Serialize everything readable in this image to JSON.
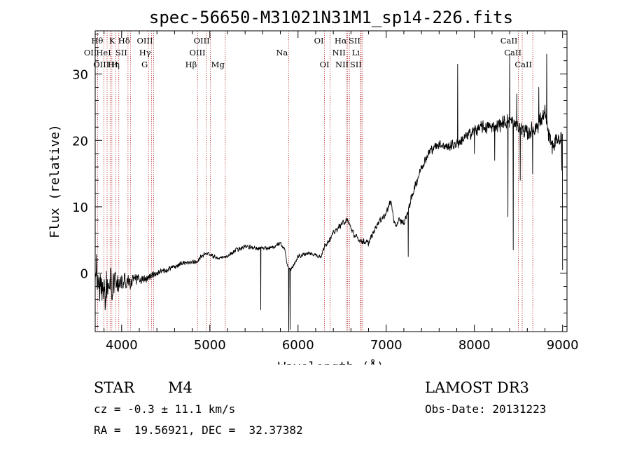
{
  "chart_data": {
    "type": "line",
    "title": "spec-56650-M31021N31M1_sp14-226.fits",
    "xlabel": "Wavelength (Å)",
    "ylabel": "Flux (relative)",
    "xlim": [
      3700,
      9050
    ],
    "ylim": [
      -8.8,
      36.5
    ],
    "xticks": [
      4000,
      5000,
      6000,
      7000,
      8000,
      9000
    ],
    "yticks": [
      0,
      10,
      20,
      30
    ],
    "spectrum_anchors": [
      [
        3700,
        0
      ],
      [
        3760,
        -1
      ],
      [
        3800,
        -3
      ],
      [
        3850,
        -2
      ],
      [
        3900,
        -1.5
      ],
      [
        3950,
        -1
      ],
      [
        4000,
        -1.2
      ],
      [
        4050,
        -1.5
      ],
      [
        4100,
        -1.2
      ],
      [
        4200,
        -0.8
      ],
      [
        4300,
        -0.7
      ],
      [
        4400,
        0.1
      ],
      [
        4500,
        0.5
      ],
      [
        4600,
        1.0
      ],
      [
        4700,
        1.5
      ],
      [
        4800,
        1.6
      ],
      [
        4860,
        1.8
      ],
      [
        4900,
        2.5
      ],
      [
        4950,
        3.0
      ],
      [
        5000,
        2.8
      ],
      [
        5100,
        2.2
      ],
      [
        5200,
        2.5
      ],
      [
        5300,
        3.5
      ],
      [
        5400,
        4.0
      ],
      [
        5500,
        3.8
      ],
      [
        5550,
        3.8
      ],
      [
        5700,
        3.8
      ],
      [
        5800,
        4.5
      ],
      [
        5850,
        3.5
      ],
      [
        5880,
        1.0
      ],
      [
        5920,
        0.5
      ],
      [
        5960,
        1.5
      ],
      [
        6000,
        2.5
      ],
      [
        6100,
        3.0
      ],
      [
        6200,
        2.8
      ],
      [
        6260,
        2.5
      ],
      [
        6300,
        4.0
      ],
      [
        6400,
        6.0
      ],
      [
        6500,
        7.5
      ],
      [
        6560,
        8.0
      ],
      [
        6600,
        6.8
      ],
      [
        6650,
        5.5
      ],
      [
        6700,
        5.0
      ],
      [
        6800,
        4.5
      ],
      [
        6850,
        6.0
      ],
      [
        6900,
        7.5
      ],
      [
        7000,
        9.0
      ],
      [
        7050,
        11.0
      ],
      [
        7100,
        7.0
      ],
      [
        7150,
        8.0
      ],
      [
        7200,
        7.5
      ],
      [
        7250,
        9.5
      ],
      [
        7300,
        12.0
      ],
      [
        7400,
        16.0
      ],
      [
        7500,
        18.5
      ],
      [
        7600,
        19.5
      ],
      [
        7700,
        19.0
      ],
      [
        7800,
        19.5
      ],
      [
        7900,
        20.5
      ],
      [
        8000,
        21.5
      ],
      [
        8100,
        22.0
      ],
      [
        8200,
        22.0
      ],
      [
        8300,
        22.5
      ],
      [
        8400,
        23.0
      ],
      [
        8500,
        22.0
      ],
      [
        8600,
        21.0
      ],
      [
        8700,
        22.0
      ],
      [
        8800,
        24.0
      ],
      [
        8850,
        20.0
      ],
      [
        8900,
        19.0
      ],
      [
        8950,
        20.5
      ],
      [
        9000,
        20.0
      ]
    ],
    "spectrum_features": [
      [
        5577,
        -5.5
      ],
      [
        5895,
        -8.8
      ],
      [
        5910,
        -8.5
      ],
      [
        7250,
        2.5
      ],
      [
        7810,
        31.5
      ],
      [
        8000,
        18.0
      ],
      [
        8230,
        17.0
      ],
      [
        8380,
        8.5
      ],
      [
        8400,
        33.0
      ],
      [
        8440,
        3.5
      ],
      [
        8480,
        27.0
      ],
      [
        8520,
        14.0
      ],
      [
        8660,
        15.0
      ],
      [
        8730,
        28.0
      ],
      [
        8820,
        33.0
      ],
      [
        8990,
        15.5
      ],
      [
        9000,
        0.5
      ]
    ],
    "noise_profile": [
      [
        3700,
        4.0
      ],
      [
        3850,
        3.2
      ],
      [
        4000,
        1.8
      ],
      [
        4150,
        1.0
      ],
      [
        4400,
        0.5
      ],
      [
        5000,
        0.35
      ],
      [
        6000,
        0.4
      ],
      [
        7000,
        0.6
      ],
      [
        7500,
        0.8
      ],
      [
        8000,
        1.1
      ],
      [
        9000,
        1.6
      ]
    ],
    "lines": [
      {
        "label": "Hθ",
        "wavelength": 3798,
        "row": 1,
        "side": "left"
      },
      {
        "label": "K",
        "wavelength": 3934,
        "row": 1,
        "side": "left"
      },
      {
        "label": "Hδ",
        "wavelength": 4102,
        "row": 1,
        "side": "left"
      },
      {
        "label": "OIII",
        "wavelength": 4363,
        "row": 1,
        "side": "left"
      },
      {
        "label": "OIII",
        "wavelength": 5007,
        "row": 1,
        "side": "left"
      },
      {
        "label": "OI",
        "wavelength": 6300,
        "row": 1,
        "side": "left"
      },
      {
        "label": "Hα",
        "wavelength": 6563,
        "row": 1,
        "side": "left"
      },
      {
        "label": "SII",
        "wavelength": 6716,
        "row": 1,
        "side": "left"
      },
      {
        "label": "CaII",
        "wavelength": 8498,
        "row": 1,
        "side": "left"
      },
      {
        "label": "OII",
        "wavelength": 3727,
        "row": 2,
        "side": "left"
      },
      {
        "label": "HeI",
        "wavelength": 3889,
        "row": 2,
        "side": "left"
      },
      {
        "label": "SII",
        "wavelength": 4072,
        "row": 2,
        "side": "left"
      },
      {
        "label": "Hγ",
        "wavelength": 4340,
        "row": 2,
        "side": "left"
      },
      {
        "label": "OIII",
        "wavelength": 4959,
        "row": 2,
        "side": "left"
      },
      {
        "label": "Na",
        "wavelength": 5893,
        "row": 2,
        "side": "left"
      },
      {
        "label": "NII",
        "wavelength": 6548,
        "row": 2,
        "side": "left"
      },
      {
        "label": "Li",
        "wavelength": 6708,
        "row": 2,
        "side": "left"
      },
      {
        "label": "CaII",
        "wavelength": 8542,
        "row": 2,
        "side": "left"
      },
      {
        "label": "OIII",
        "wavelength": 3869,
        "row": 3,
        "side": "left"
      },
      {
        "label": "Hη",
        "wavelength": 3835,
        "row": 3,
        "side": "right"
      },
      {
        "label": "H",
        "wavelength": 3968,
        "row": 3,
        "side": "left"
      },
      {
        "label": "G",
        "wavelength": 4305,
        "row": 3,
        "side": "left"
      },
      {
        "label": "Hβ",
        "wavelength": 4861,
        "row": 3,
        "side": "left"
      },
      {
        "label": "Mg",
        "wavelength": 5175,
        "row": 3,
        "side": "left"
      },
      {
        "label": "OI",
        "wavelength": 6364,
        "row": 3,
        "side": "left"
      },
      {
        "label": "NII",
        "wavelength": 6583,
        "row": 3,
        "side": "left"
      },
      {
        "label": "SII",
        "wavelength": 6731,
        "row": 3,
        "side": "left"
      },
      {
        "label": "CaII",
        "wavelength": 8662,
        "row": 3,
        "side": "left"
      }
    ],
    "line_color": "#b22222"
  },
  "info": {
    "class_label": "STAR",
    "subclass": "M4",
    "redshift": "cz = -0.3 ± 11.1 km/s",
    "coords": "RA =  19.56921, DEC =  32.37382",
    "survey": "LAMOST DR3",
    "obs_date": "Obs-Date: 20131223"
  }
}
